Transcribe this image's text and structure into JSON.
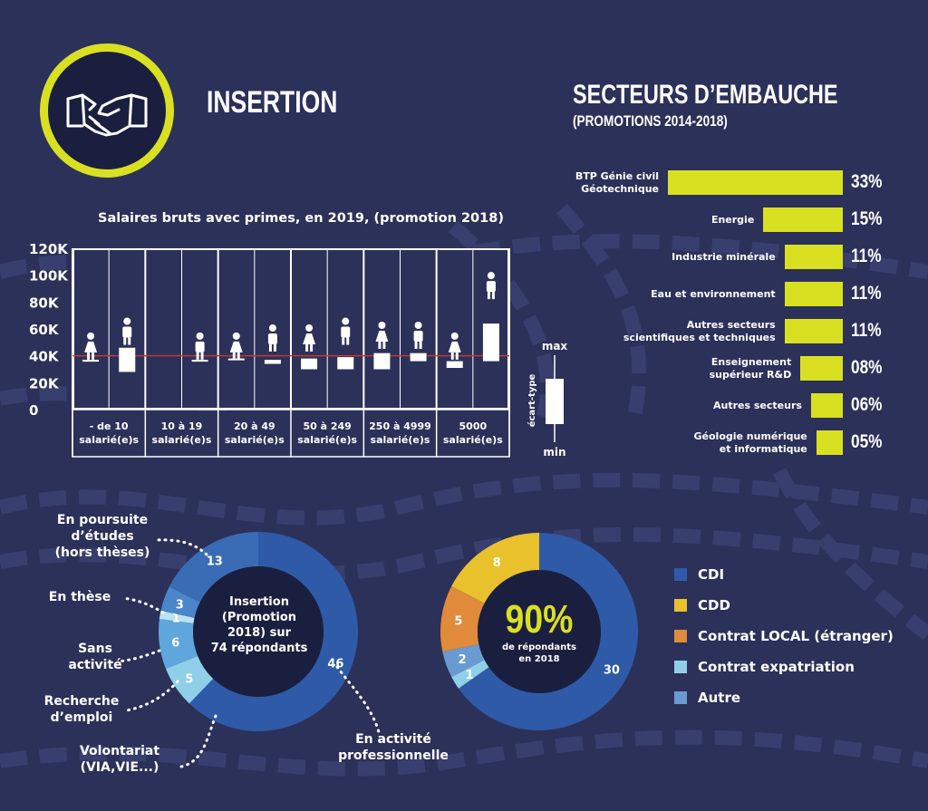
{
  "header": {
    "title": "INSERTION",
    "logo_icon": "handshake-icon",
    "accent": "#d9e021"
  },
  "sectors": {
    "title": "SECTEURS D’EMBAUCHE",
    "subtitle": "(PROMOTIONS 2014-2018)"
  },
  "salary": {
    "title": "Salaires bruts avec primes, en 2019, (promotion 2018)",
    "legend_max": "max",
    "legend_min": "min",
    "legend_label": "écart-type"
  },
  "donut1": {
    "center_line1": "Insertion",
    "center_line2": "(Promotion",
    "center_line3": "2018) sur",
    "center_line4": "74 répondants"
  },
  "donut2": {
    "center_big": "90%",
    "center_line1": "de répondants",
    "center_line2": "en 2018"
  },
  "colors": {
    "background": "#2c315a",
    "bar": "#d9e021",
    "cdi": "#2e5aa8",
    "cdd": "#e8c12c",
    "local": "#e08a3a",
    "expat": "#8fd0e8",
    "autre": "#6a9bd0",
    "ref_line": "#c0392b"
  },
  "chart_data": [
    {
      "type": "bar",
      "orientation": "horizontal",
      "categories": [
        "BTP Génie civil\nGéotechnique",
        "Energie",
        "Industrie minérale",
        "Eau et environnement",
        "Autres secteurs\nscientifiques et techniques",
        "Enseignement\nsupérieur R&D",
        "Autres secteurs",
        "Géologie numérique\net informatique"
      ],
      "values": [
        33,
        15,
        11,
        11,
        11,
        8,
        6,
        5
      ],
      "value_labels": [
        "33%",
        "15%",
        "11%",
        "11%",
        "11%",
        "08%",
        "06%",
        "05%"
      ],
      "xlim": [
        0,
        33
      ]
    },
    {
      "type": "box",
      "title": "Salaires bruts avec primes, en 2019, (promotion 2018)",
      "yticks": [
        "120K",
        "100K",
        "80K",
        "60K",
        "40K",
        "20K",
        "0"
      ],
      "ylim": [
        0,
        120000
      ],
      "reference_line": 40000,
      "categories": [
        "- de 10\nsalarié(e)s",
        "10 à 19\nsalarié(e)s",
        "20 à 49\nsalarié(e)s",
        "50 à 249\nsalarié(e)s",
        "250 à 4999\nsalarié(e)s",
        "5000\nsalarié(e)s"
      ],
      "series": [
        {
          "name": "femme",
          "boxes": [
            {
              "low": 36000,
              "high": 37000,
              "top": 52000
            },
            null,
            {
              "low": 37000,
              "high": 38000,
              "top": 52000
            },
            {
              "low": 30000,
              "high": 38000,
              "top": 58000
            },
            {
              "low": 30000,
              "high": 42000,
              "top": 60000
            },
            {
              "low": 31000,
              "high": 36000,
              "top": 52000
            }
          ]
        },
        {
          "name": "homme",
          "boxes": [
            {
              "low": 28000,
              "high": 46000,
              "top": 63000
            },
            {
              "low": 36000,
              "high": 37000,
              "top": 52000
            },
            {
              "low": 34000,
              "high": 37000,
              "top": 58000
            },
            {
              "low": 30000,
              "high": 39000,
              "top": 63000
            },
            {
              "low": 36000,
              "high": 42000,
              "top": 60000
            },
            {
              "low": 36000,
              "high": 64000,
              "top": 97000
            }
          ]
        }
      ]
    },
    {
      "type": "pie",
      "variant": "donut",
      "labels": [
        "En activité professionnelle",
        "Volontariat (VIA,VIE...)",
        "Recherche d’emploi",
        "Sans activité",
        "En thèse",
        "En poursuite d’études (hors thèses)"
      ],
      "display_labels": [
        "En activité\nprofessionnelle",
        "Volontariat\n(VIA,VIE...)",
        "Recherche\nd’emploi",
        "Sans\nactivité",
        "En thèse",
        "En poursuite\nd’études\n(hors thèses)"
      ],
      "values": [
        46,
        5,
        6,
        1,
        3,
        13
      ],
      "colors": [
        "#2e5aa8",
        "#8fd0e8",
        "#5ea6dc",
        "#b9e3f3",
        "#4a86c9",
        "#3a6cb6"
      ]
    },
    {
      "type": "pie",
      "variant": "donut",
      "labels": [
        "CDI",
        "Contrat expatriation",
        "Autre",
        "Contrat LOCAL (étranger)",
        "CDD"
      ],
      "legend": [
        "CDI",
        "CDD",
        "Contrat LOCAL (étranger)",
        "Contrat expatriation",
        "Autre"
      ],
      "values": [
        30,
        1,
        2,
        5,
        8
      ],
      "colors": [
        "#2e5aa8",
        "#8fd0e8",
        "#6a9bd0",
        "#e08a3a",
        "#e8c12c"
      ]
    }
  ]
}
